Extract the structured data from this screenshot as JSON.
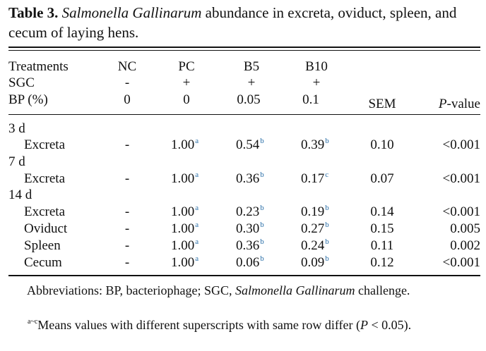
{
  "caption": {
    "label": "Table 3.",
    "italic": "Salmonella Gallinarum",
    "rest": " abundance in excreta, oviduct, spleen, and cecum of laying hens."
  },
  "header": {
    "row1_label": "Treatments",
    "row2_label": "SGC",
    "row3_label": "BP (%)",
    "groups": [
      {
        "name": "NC",
        "sgc": "-",
        "bp": "0"
      },
      {
        "name": "PC",
        "sgc": "+",
        "bp": "0"
      },
      {
        "name": "B5",
        "sgc": "+",
        "bp": "0.05"
      },
      {
        "name": "B10",
        "sgc": "+",
        "bp": "0.1"
      }
    ],
    "sem": "SEM",
    "pvalue_italic": "P",
    "pvalue_rest": "-value"
  },
  "sections": [
    {
      "title": "3 d",
      "rows": [
        {
          "label": "Excreta",
          "nc": "-",
          "pc": "1.00",
          "pc_sup": "a",
          "b5": "0.54",
          "b5_sup": "b",
          "b10": "0.39",
          "b10_sup": "b",
          "sem": "0.10",
          "p": "<0.001"
        }
      ]
    },
    {
      "title": "7 d",
      "rows": [
        {
          "label": "Excreta",
          "nc": "-",
          "pc": "1.00",
          "pc_sup": "a",
          "b5": "0.36",
          "b5_sup": "b",
          "b10": "0.17",
          "b10_sup": "c",
          "sem": "0.07",
          "p": "<0.001"
        }
      ]
    },
    {
      "title": "14 d",
      "rows": [
        {
          "label": "Excreta",
          "nc": "-",
          "pc": "1.00",
          "pc_sup": "a",
          "b5": "0.23",
          "b5_sup": "b",
          "b10": "0.19",
          "b10_sup": "b",
          "sem": "0.14",
          "p": "<0.001"
        },
        {
          "label": "Oviduct",
          "nc": "-",
          "pc": "1.00",
          "pc_sup": "a",
          "b5": "0.30",
          "b5_sup": "b",
          "b10": "0.27",
          "b10_sup": "b",
          "sem": "0.15",
          "p": "0.005"
        },
        {
          "label": "Spleen",
          "nc": "-",
          "pc": "1.00",
          "pc_sup": "a",
          "b5": "0.36",
          "b5_sup": "b",
          "b10": "0.24",
          "b10_sup": "b",
          "sem": "0.11",
          "p": "0.002"
        },
        {
          "label": "Cecum",
          "nc": "-",
          "pc": "1.00",
          "pc_sup": "a",
          "b5": "0.06",
          "b5_sup": "b",
          "b10": "0.09",
          "b10_sup": "b",
          "sem": "0.12",
          "p": "<0.001"
        }
      ]
    }
  ],
  "footnotes": {
    "abbrev_prefix": "Abbreviations: BP, bacteriophage; SGC, ",
    "abbrev_italic": "Salmonella Gallinarum",
    "abbrev_suffix": " challenge.",
    "means_sup": "a~c",
    "means_text": "Means values with different superscripts with same row differ",
    "means_p_open": "(",
    "means_p_italic": "P",
    "means_p_rest": " < 0.05)."
  }
}
